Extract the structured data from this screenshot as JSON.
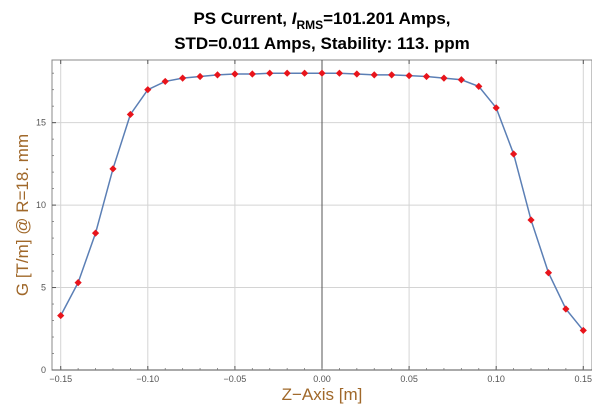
{
  "chart_data": {
    "type": "scatter",
    "title_line1": {
      "prefix": "PS Current, ",
      "i_symbol": "I",
      "subscript": "RMS",
      "suffix": "=101.201 Amps,"
    },
    "title_line2": "STD=0.011 Amps, Stability: 113. ppm",
    "xlabel": "Z−Axis [m]",
    "ylabel": "G [T/m] @ R=18. mm",
    "xlim": [
      -0.155,
      0.155
    ],
    "ylim": [
      0,
      18.8
    ],
    "x_ticks": [
      {
        "value": -0.15,
        "label": "−0.15"
      },
      {
        "value": -0.1,
        "label": "−0.10"
      },
      {
        "value": -0.05,
        "label": "−0.05"
      },
      {
        "value": 0.0,
        "label": "0.00"
      },
      {
        "value": 0.05,
        "label": "0.05"
      },
      {
        "value": 0.1,
        "label": "0.10"
      },
      {
        "value": 0.15,
        "label": "0.15"
      }
    ],
    "y_ticks": [
      {
        "value": 0,
        "label": "0"
      },
      {
        "value": 5,
        "label": "5"
      },
      {
        "value": 10,
        "label": "10"
      },
      {
        "value": 15,
        "label": "15"
      }
    ],
    "grid": true,
    "series": [
      {
        "line_color": "#5b7fb5",
        "marker_color": "#e8141b",
        "x": [
          -0.15,
          -0.14,
          -0.13,
          -0.12,
          -0.11,
          -0.1,
          -0.09,
          -0.08,
          -0.07,
          -0.06,
          -0.05,
          -0.04,
          -0.03,
          -0.02,
          -0.01,
          0.0,
          0.01,
          0.02,
          0.03,
          0.04,
          0.05,
          0.06,
          0.07,
          0.08,
          0.09,
          0.1,
          0.11,
          0.12,
          0.13,
          0.14,
          0.15
        ],
        "y": [
          3.3,
          5.3,
          8.3,
          12.2,
          15.5,
          17.0,
          17.5,
          17.7,
          17.8,
          17.9,
          17.95,
          17.95,
          18.0,
          18.0,
          18.0,
          18.0,
          18.0,
          17.95,
          17.9,
          17.9,
          17.85,
          17.8,
          17.7,
          17.6,
          17.2,
          15.9,
          13.1,
          9.1,
          5.9,
          3.7,
          2.4
        ]
      }
    ]
  }
}
